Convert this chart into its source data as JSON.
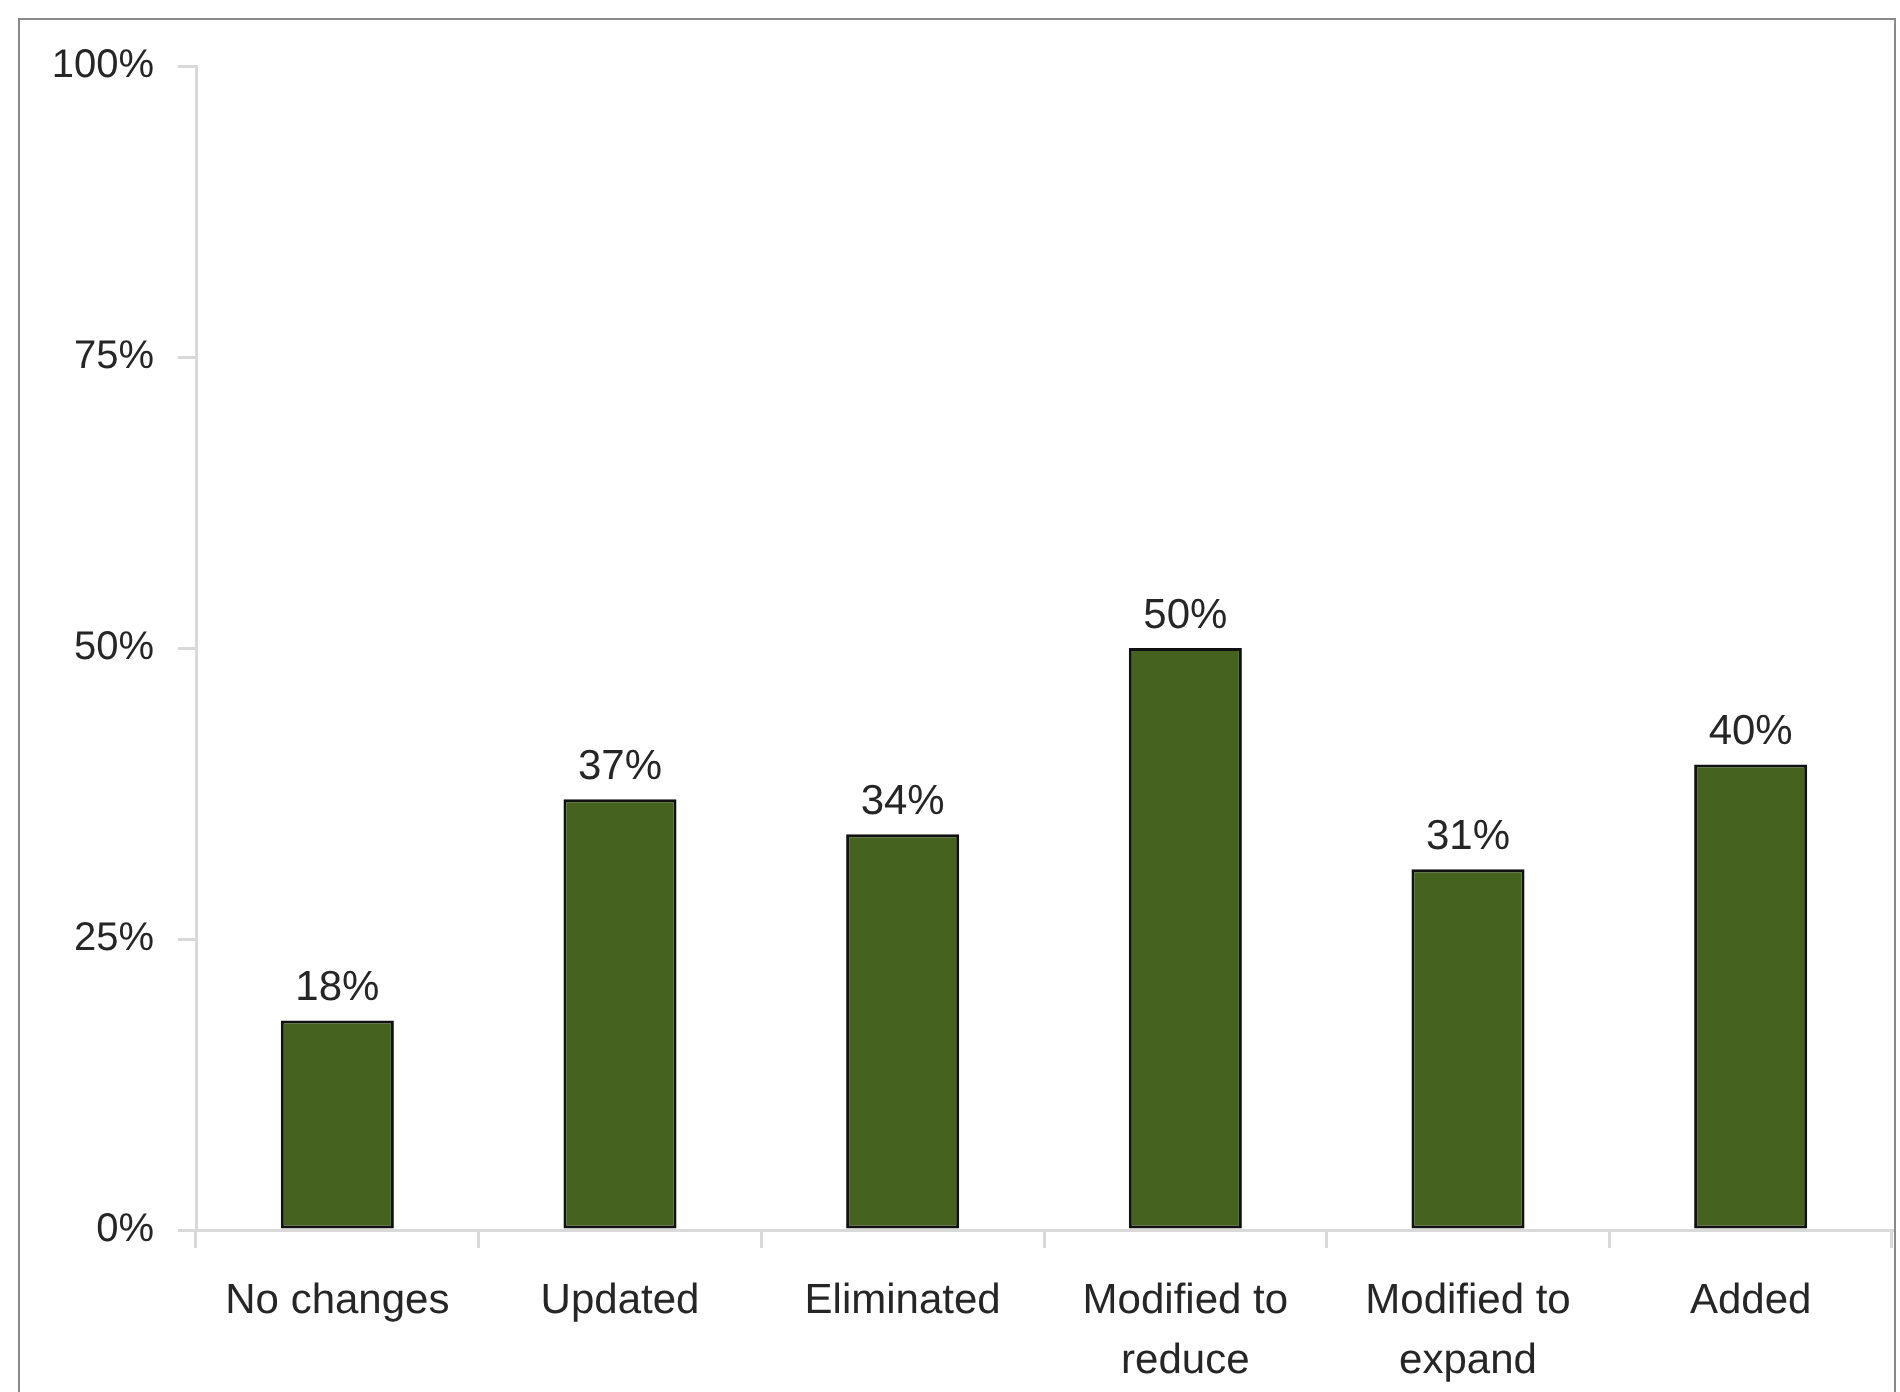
{
  "chart_data": {
    "type": "bar",
    "categories": [
      "No changes",
      "Updated",
      "Eliminated",
      "Modified to reduce",
      "Modified to expand",
      "Added"
    ],
    "values": [
      18,
      37,
      34,
      50,
      31,
      40
    ],
    "value_labels": [
      "18%",
      "37%",
      "34%",
      "50%",
      "31%",
      "40%"
    ],
    "color": "#46621f",
    "ylim": [
      0,
      100
    ],
    "yticks": [
      {
        "value": 0,
        "label": "0%"
      },
      {
        "value": 25,
        "label": "25%"
      },
      {
        "value": 50,
        "label": "50%"
      },
      {
        "value": 75,
        "label": "75%"
      },
      {
        "value": 100,
        "label": "100%"
      }
    ]
  }
}
